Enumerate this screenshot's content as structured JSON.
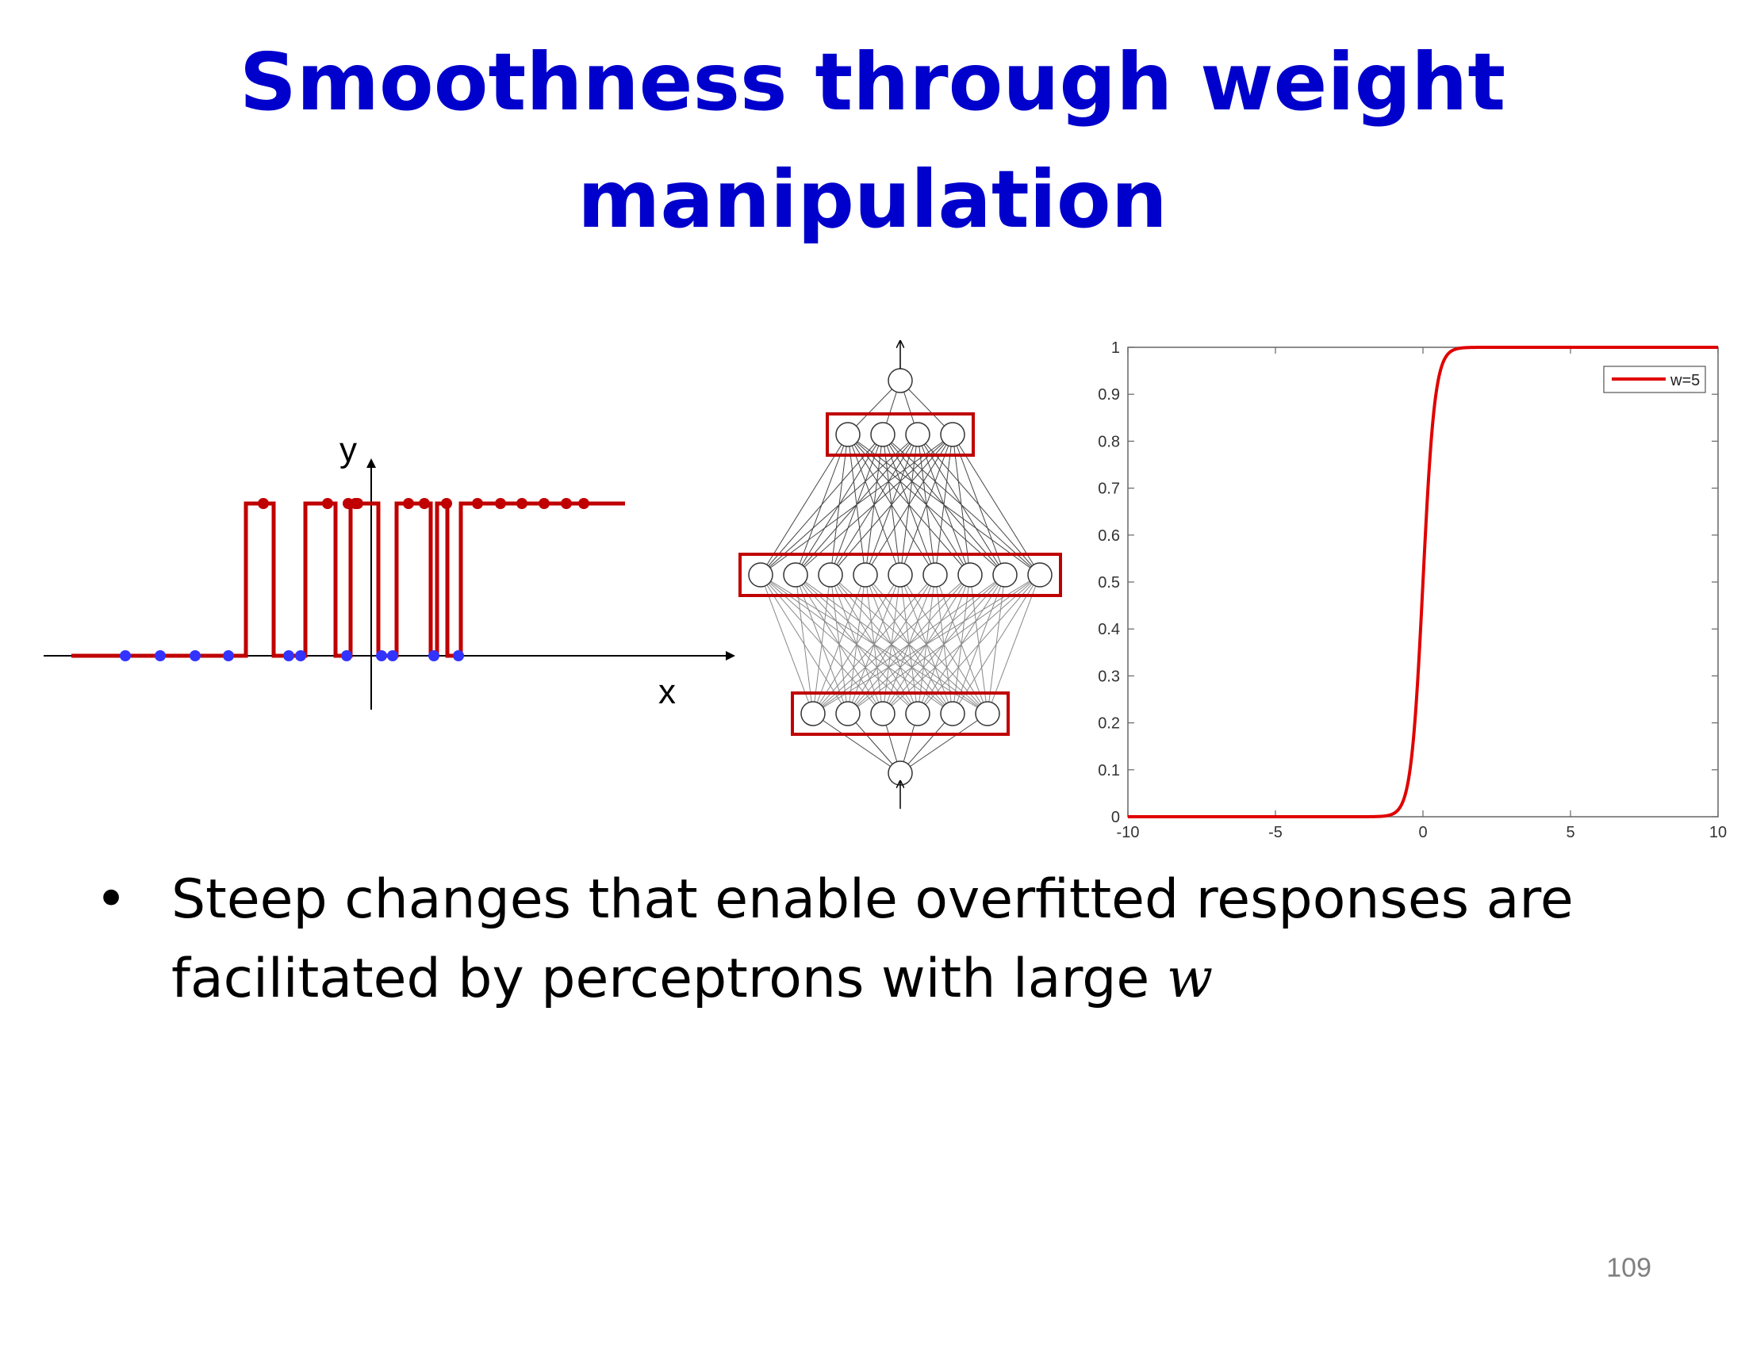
{
  "slide": {
    "title_line1": "Smoothness through weight",
    "title_line2": "manipulation",
    "bullet_text": "Steep changes that enable overfitted responses are facilitated by perceptrons with large ",
    "bullet_var": "w",
    "page_number": "109"
  },
  "colors": {
    "title": "#0000cc",
    "curve": "#c00000",
    "blue_points": "#3333ff",
    "box": "#c00000"
  },
  "step_plot": {
    "y_label": "y",
    "x_label": "x"
  },
  "network": {
    "layers": [
      1,
      6,
      9,
      4,
      1
    ]
  },
  "chart_data": {
    "type": "line",
    "series": [
      {
        "name": "w=5",
        "function": "sigmoid",
        "weight": 5
      }
    ],
    "xlim": [
      -10,
      10
    ],
    "ylim": [
      0,
      1
    ],
    "x_ticks": [
      "-10",
      "-5",
      "0",
      "5",
      "10"
    ],
    "y_ticks": [
      "0",
      "0.1",
      "0.2",
      "0.3",
      "0.4",
      "0.5",
      "0.6",
      "0.7",
      "0.8",
      "0.9",
      "1"
    ],
    "legend": "top-right",
    "grid": false
  }
}
